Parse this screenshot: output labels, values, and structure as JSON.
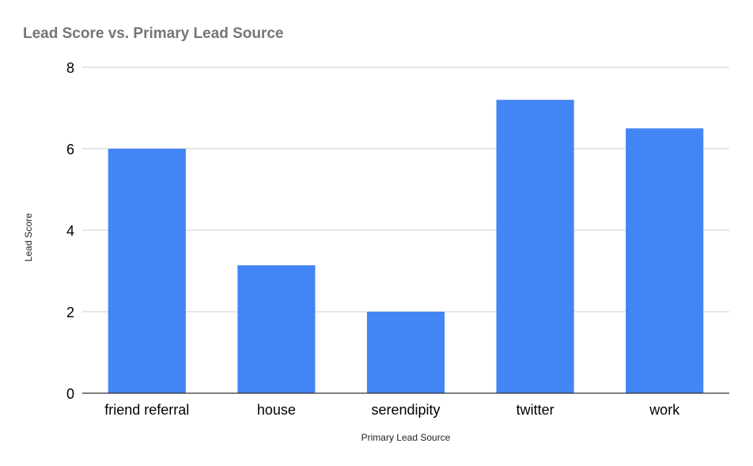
{
  "colors": {
    "bar": "#4285f4",
    "gridline": "#cccccc",
    "baseline": "#333333",
    "title": "#757575",
    "tick_text": "#000000",
    "axis_title_text": "#222222",
    "background": "#ffffff"
  },
  "chart_data": {
    "type": "bar",
    "title": "Lead Score vs. Primary Lead Source",
    "xlabel": "Primary Lead Source",
    "ylabel": "Lead Score",
    "categories": [
      "friend referral",
      "house",
      "serendipity",
      "twitter",
      "work"
    ],
    "values": [
      6,
      3.14,
      2,
      7.2,
      6.5
    ],
    "ylim": [
      0,
      8
    ],
    "yticks": [
      0,
      2,
      4,
      6,
      8
    ],
    "grid": true,
    "legend": "none"
  }
}
